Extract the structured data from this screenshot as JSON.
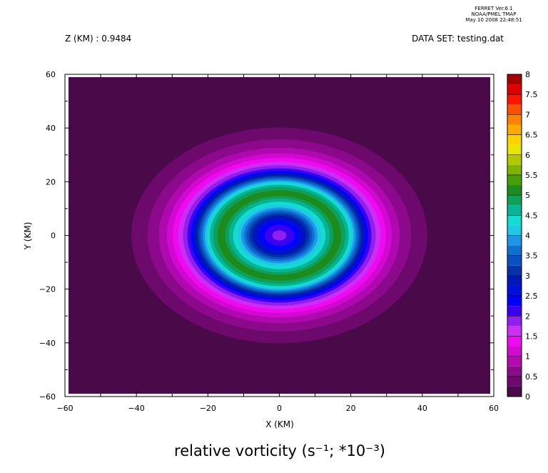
{
  "stamp": {
    "line1": "FERRET  Ver.6.1",
    "line2": "NOAA/PMEL TMAP",
    "line3": "May 10 2008 22:48:51"
  },
  "header": {
    "left": "Z (KM) : 0.9484",
    "right": "DATA SET: testing.dat"
  },
  "chart_data": {
    "type": "heatmap",
    "subtype": "filled-contour",
    "title": "relative vorticity (s⁻¹; *10⁻³)",
    "xlabel": "X (KM)",
    "ylabel": "Y (KM)",
    "xlim": [
      -60,
      60
    ],
    "ylim": [
      -60,
      60
    ],
    "x_ticks": [
      -60,
      -40,
      -20,
      0,
      20,
      40,
      60
    ],
    "x_tick_labels": [
      "−60",
      "−40",
      "−20",
      "0",
      "20",
      "40",
      "60"
    ],
    "y_ticks": [
      -60,
      -40,
      -20,
      0,
      20,
      40,
      60
    ],
    "y_tick_labels": [
      "−60",
      "−40",
      "−20",
      "0",
      "20",
      "40",
      "60"
    ],
    "data_extent": {
      "x": [
        -59,
        59
      ],
      "y": [
        -59,
        59
      ]
    },
    "field": {
      "center": [
        0,
        0
      ],
      "profile_r": [
        0,
        2,
        5,
        8,
        11,
        14,
        16,
        18,
        20,
        22,
        25,
        28,
        31,
        34,
        38,
        42,
        46,
        52
      ],
      "profile_v": [
        1.95,
        2.0,
        2.35,
        3.1,
        4.1,
        4.7,
        5.2,
        4.9,
        4.35,
        3.5,
        2.15,
        1.55,
        1.05,
        0.72,
        0.42,
        0.22,
        0.05,
        0.0
      ]
    },
    "colorbar": {
      "levels": [
        0,
        0.25,
        0.5,
        0.75,
        1,
        1.25,
        1.5,
        1.75,
        2,
        2.25,
        2.5,
        2.75,
        3,
        3.25,
        3.5,
        3.75,
        4,
        4.25,
        4.5,
        4.75,
        5,
        5.25,
        5.5,
        5.75,
        6,
        6.25,
        6.5,
        6.75,
        7,
        7.25,
        7.5,
        7.75,
        8
      ],
      "labels": [
        "0",
        "0.5",
        "1",
        "1.5",
        "2",
        "2.5",
        "3",
        "3.5",
        "4",
        "4.5",
        "5",
        "5.5",
        "6",
        "6.5",
        "7",
        "7.5",
        "8"
      ],
      "colors": [
        "#4a0a4a",
        "#6e0a6e",
        "#8c0a8c",
        "#b00ab0",
        "#d20ad2",
        "#f00af0",
        "#cc2ef5",
        "#9020f0",
        "#3c00f0",
        "#0000ff",
        "#0010d8",
        "#0018b4",
        "#0432a8",
        "#0a50c0",
        "#1070d0",
        "#1e96e6",
        "#20c8e6",
        "#14dcd2",
        "#08b496",
        "#10a05a",
        "#1e8c1e",
        "#46a00a",
        "#7eb400",
        "#b4c800",
        "#e6e600",
        "#ffd200",
        "#ffaa00",
        "#ff8200",
        "#ff5000",
        "#ff1400",
        "#e10000",
        "#a50000",
        "#780000"
      ]
    }
  }
}
